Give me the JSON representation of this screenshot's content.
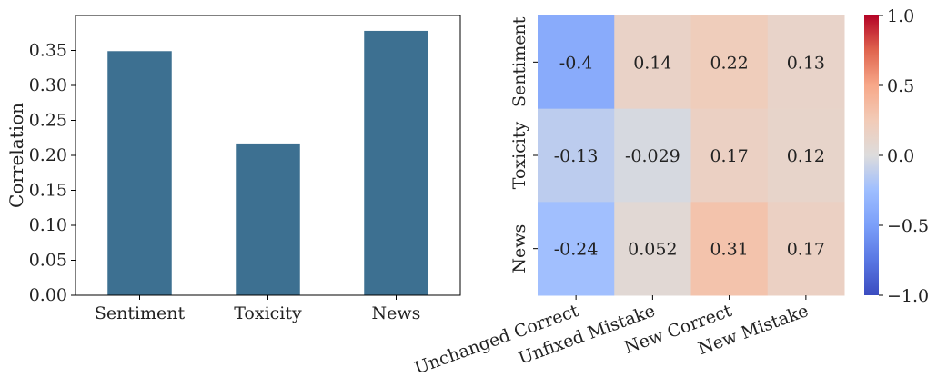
{
  "chart_data": [
    {
      "type": "bar",
      "categories": [
        "Sentiment",
        "Toxicity",
        "News"
      ],
      "values": [
        0.349,
        0.217,
        0.378
      ],
      "ylabel": "Correlation",
      "ylim": [
        0,
        0.4
      ],
      "yticks": [
        0.0,
        0.05,
        0.1,
        0.15,
        0.2,
        0.25,
        0.3,
        0.35
      ],
      "ytick_labels": [
        "0.00",
        "0.05",
        "0.10",
        "0.15",
        "0.20",
        "0.25",
        "0.30",
        "0.35"
      ],
      "bar_color": "#3d7091",
      "grid": false
    },
    {
      "type": "heatmap",
      "rows": [
        "Sentiment",
        "Toxicity",
        "News"
      ],
      "cols": [
        "Unchanged Correct",
        "Unfixed Mistake",
        "New Correct",
        "New Mistake"
      ],
      "values": [
        [
          -0.4,
          0.14,
          0.22,
          0.13
        ],
        [
          -0.13,
          -0.029,
          0.17,
          0.12
        ],
        [
          -0.24,
          0.052,
          0.31,
          0.17
        ]
      ],
      "value_labels": [
        [
          "-0.4",
          "0.14",
          "0.22",
          "0.13"
        ],
        [
          "-0.13",
          "-0.029",
          "0.17",
          "0.12"
        ],
        [
          "-0.24",
          "0.052",
          "0.31",
          "0.17"
        ]
      ],
      "colormap": "coolwarm",
      "vmin": -1.0,
      "vmax": 1.0,
      "colorbar_ticks": [
        1.0,
        0.5,
        0.0,
        -0.5,
        -1.0
      ],
      "colorbar_tick_labels": [
        "1.0",
        "0.5",
        "0.0",
        "−0.5",
        "−1.0"
      ]
    }
  ]
}
